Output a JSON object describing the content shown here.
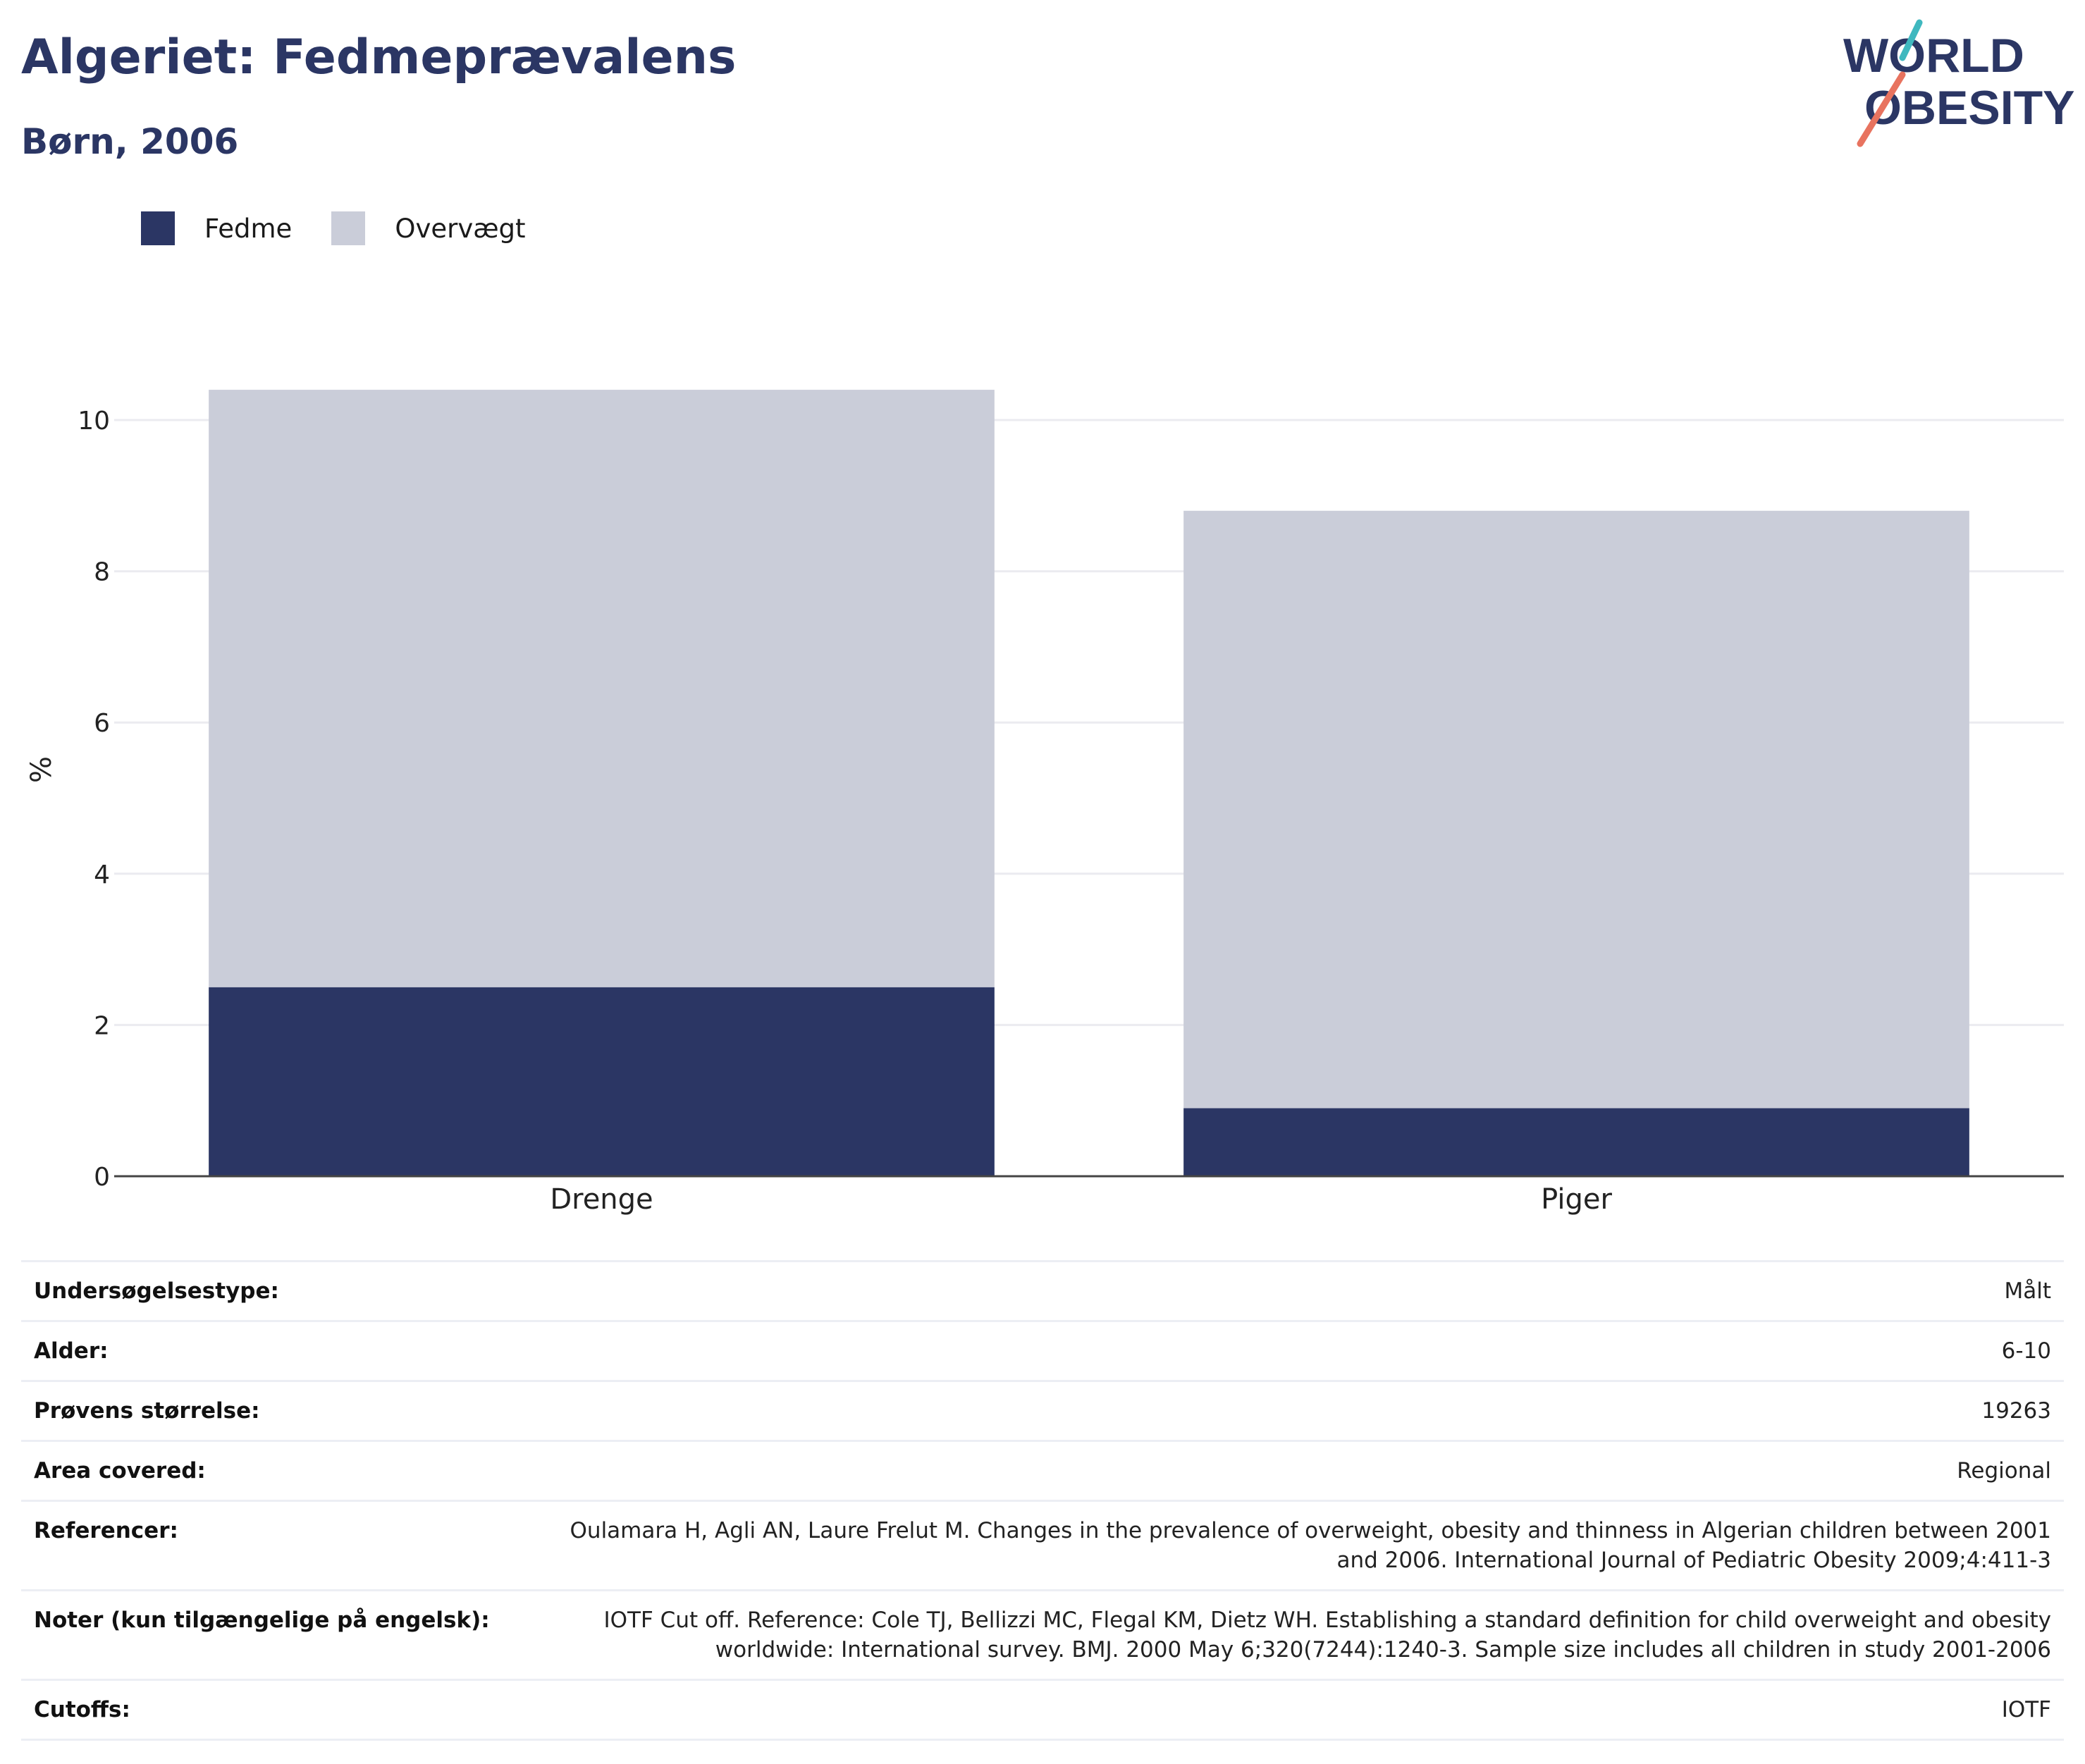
{
  "header": {
    "title": "Algeriet: Fedmeprævalens",
    "subtitle": "Børn, 2006",
    "logo": {
      "line1": "WORLD",
      "line2": "OBESITY"
    }
  },
  "colors": {
    "brand_navy": "#2b3664",
    "obesity": "#2b3664",
    "overweight": "#cacdd9",
    "logo_teal": "#3fb8bf",
    "logo_coral": "#e8735f"
  },
  "legend": [
    {
      "label": "Fedme",
      "color": "#2b3664"
    },
    {
      "label": "Overvægt",
      "color": "#cacdd9"
    }
  ],
  "chart_data": {
    "type": "bar",
    "stacked": true,
    "categories": [
      "Drenge",
      "Piger"
    ],
    "series": [
      {
        "name": "Fedme",
        "values": [
          2.5,
          0.9
        ],
        "color": "#2b3664"
      },
      {
        "name": "Overvægt",
        "values": [
          7.9,
          7.9
        ],
        "color": "#cacdd9"
      }
    ],
    "ylabel": "%",
    "ylim": [
      0,
      10.4
    ],
    "yticks": [
      0,
      2,
      4,
      6,
      8,
      10
    ],
    "grid": true,
    "legend_position": "top-left"
  },
  "info": [
    {
      "key": "Undersøgelsestype:",
      "value": "Målt"
    },
    {
      "key": "Alder:",
      "value": "6-10"
    },
    {
      "key": "Prøvens størrelse:",
      "value": "19263"
    },
    {
      "key": "Area covered:",
      "value": "Regional"
    },
    {
      "key": "Referencer:",
      "value": "Oulamara H, Agli AN, Laure Frelut M. Changes in the prevalence of overweight, obesity and thinness in Algerian children between 2001 and 2006. International Journal of Pediatric Obesity 2009;4:411-3"
    },
    {
      "key": "Noter (kun tilgængelige på engelsk):",
      "value": "IOTF Cut off. Reference: Cole TJ, Bellizzi MC, Flegal KM, Dietz WH. Establishing a standard definition for child overweight and obesity worldwide: International survey. BMJ. 2000 May 6;320(7244):1240-3. Sample size includes all children in study 2001-2006"
    },
    {
      "key": "Cutoffs:",
      "value": "IOTF"
    }
  ]
}
